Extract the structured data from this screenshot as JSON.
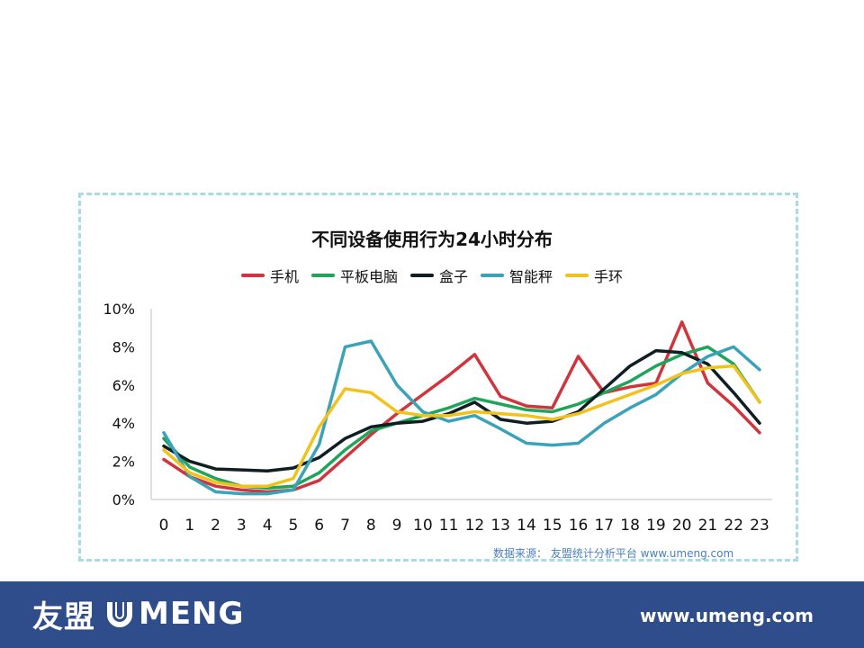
{
  "chart_data": {
    "type": "line",
    "title": "不同设备使用行为24小时分布",
    "x": [
      "0",
      "1",
      "2",
      "3",
      "4",
      "5",
      "6",
      "7",
      "8",
      "9",
      "10",
      "11",
      "12",
      "13",
      "14",
      "15",
      "16",
      "17",
      "18",
      "19",
      "20",
      "21",
      "22",
      "23"
    ],
    "ylim": [
      0,
      10
    ],
    "yticks": [
      "0%",
      "2%",
      "4%",
      "6%",
      "8%",
      "10%"
    ],
    "legend_position": "top-center",
    "grid": false,
    "series": [
      {
        "name": "手机",
        "color": "#d0343c",
        "values": [
          2.1,
          1.2,
          0.7,
          0.5,
          0.4,
          0.5,
          1.0,
          2.2,
          3.4,
          4.5,
          5.5,
          6.5,
          7.6,
          5.4,
          4.9,
          4.8,
          7.5,
          5.6,
          5.9,
          6.1,
          9.3,
          6.1,
          4.9,
          3.5
        ]
      },
      {
        "name": "平板电脑",
        "color": "#1ea55a",
        "values": [
          3.2,
          1.7,
          1.1,
          0.7,
          0.6,
          0.7,
          1.4,
          2.6,
          3.6,
          4.0,
          4.4,
          4.8,
          5.3,
          5.0,
          4.7,
          4.6,
          5.0,
          5.6,
          6.2,
          7.0,
          7.6,
          8.0,
          7.1,
          5.1
        ]
      },
      {
        "name": "盒子",
        "color": "#0e1e22",
        "values": [
          2.8,
          2.0,
          1.6,
          1.55,
          1.5,
          1.65,
          2.2,
          3.2,
          3.8,
          4.0,
          4.1,
          4.5,
          5.1,
          4.2,
          4.0,
          4.1,
          4.6,
          5.8,
          7.0,
          7.8,
          7.7,
          7.1,
          5.6,
          4.0
        ]
      },
      {
        "name": "智能秤",
        "color": "#3aa3b9",
        "values": [
          3.5,
          1.2,
          0.4,
          0.3,
          0.3,
          0.5,
          2.9,
          8.0,
          8.3,
          6.0,
          4.6,
          4.1,
          4.4,
          3.7,
          2.95,
          2.85,
          2.95,
          4.0,
          4.8,
          5.5,
          6.6,
          7.5,
          8.0,
          6.8
        ]
      },
      {
        "name": "手环",
        "color": "#f1c21c",
        "values": [
          2.6,
          1.4,
          0.9,
          0.7,
          0.7,
          1.1,
          3.8,
          5.8,
          5.6,
          4.6,
          4.4,
          4.4,
          4.6,
          4.5,
          4.4,
          4.2,
          4.5,
          5.0,
          5.5,
          6.0,
          6.6,
          6.9,
          7.0,
          5.1
        ]
      }
    ]
  },
  "source_text": "数据来源： 友盟统计分析平台  www.umeng.com",
  "footer": {
    "logo_cn": "友盟",
    "logo_en": "MENG",
    "url": "www.umeng.com"
  },
  "colors": {
    "panel_border": "#a9dbe5",
    "footer_bg": "#2e4d8a",
    "source_text": "#4a7fbf"
  }
}
